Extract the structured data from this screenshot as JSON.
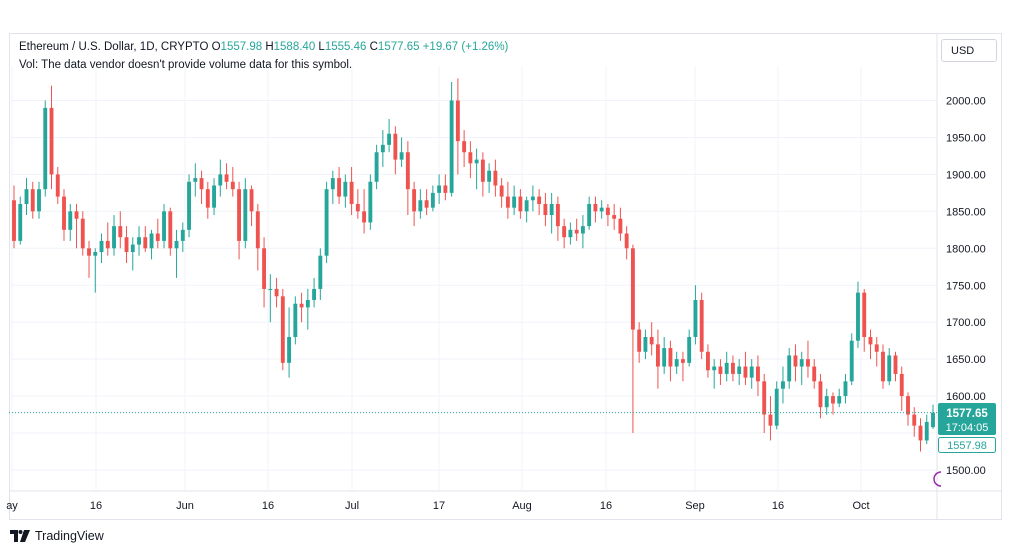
{
  "header": {
    "symbol": "Ethereum / U.S. Dollar, 1D, CRYPTO",
    "open_label": "O",
    "open": "1557.98",
    "high_label": "H",
    "high": "1588.40",
    "low_label": "L",
    "low": "1555.46",
    "close_label": "C",
    "close": "1577.65",
    "change": "+19.67 (+1.26%)",
    "volume_note": "Vol: The data vendor doesn't provide volume data for this symbol."
  },
  "currency_button": "USD",
  "price_badge": {
    "price": "1577.65",
    "countdown": "17:04:05",
    "open_price": "1557.98"
  },
  "branding": {
    "text": "TradingView"
  },
  "colors": {
    "up": "#26a69a",
    "down": "#ef5350",
    "grid": "#f0f3fa",
    "text": "#131722",
    "price_line": "#26a69a"
  },
  "chart_data": {
    "type": "candlestick",
    "y_ticks": [
      "2000.00",
      "1950.00",
      "1900.00",
      "1850.00",
      "1800.00",
      "1750.00",
      "1700.00",
      "1650.00",
      "1600.00",
      "1500.00"
    ],
    "y_tick_values": [
      2000,
      1950,
      1900,
      1850,
      1800,
      1750,
      1700,
      1650,
      1600,
      1500
    ],
    "x_ticks": [
      "ay",
      "16",
      "Jun",
      "16",
      "Jul",
      "17",
      "Aug",
      "16",
      "Sep",
      "16",
      "Oct"
    ],
    "ylim": [
      1474,
      2055
    ],
    "current_price": 1577.65,
    "candles": [
      [
        1865,
        1885,
        1800,
        1810
      ],
      [
        1810,
        1870,
        1805,
        1860
      ],
      [
        1860,
        1895,
        1845,
        1880
      ],
      [
        1880,
        1890,
        1840,
        1850
      ],
      [
        1850,
        1890,
        1840,
        1880
      ],
      [
        1880,
        2000,
        1870,
        1990
      ],
      [
        1990,
        2020,
        1880,
        1900
      ],
      [
        1900,
        1910,
        1860,
        1870
      ],
      [
        1870,
        1880,
        1810,
        1825
      ],
      [
        1825,
        1860,
        1810,
        1850
      ],
      [
        1850,
        1860,
        1800,
        1840
      ],
      [
        1840,
        1850,
        1790,
        1800
      ],
      [
        1800,
        1810,
        1760,
        1790
      ],
      [
        1790,
        1800,
        1740,
        1795
      ],
      [
        1795,
        1820,
        1780,
        1810
      ],
      [
        1810,
        1835,
        1790,
        1800
      ],
      [
        1800,
        1845,
        1790,
        1830
      ],
      [
        1830,
        1850,
        1800,
        1815
      ],
      [
        1815,
        1830,
        1780,
        1795
      ],
      [
        1795,
        1815,
        1770,
        1805
      ],
      [
        1805,
        1830,
        1790,
        1815
      ],
      [
        1815,
        1830,
        1795,
        1800
      ],
      [
        1800,
        1825,
        1785,
        1820
      ],
      [
        1820,
        1840,
        1800,
        1810
      ],
      [
        1810,
        1860,
        1800,
        1850
      ],
      [
        1850,
        1855,
        1790,
        1800
      ],
      [
        1800,
        1825,
        1760,
        1810
      ],
      [
        1810,
        1835,
        1795,
        1825
      ],
      [
        1825,
        1900,
        1815,
        1890
      ],
      [
        1890,
        1915,
        1870,
        1895
      ],
      [
        1895,
        1905,
        1860,
        1880
      ],
      [
        1880,
        1890,
        1840,
        1855
      ],
      [
        1855,
        1895,
        1845,
        1885
      ],
      [
        1885,
        1920,
        1870,
        1900
      ],
      [
        1900,
        1915,
        1880,
        1890
      ],
      [
        1890,
        1910,
        1870,
        1880
      ],
      [
        1880,
        1890,
        1785,
        1810
      ],
      [
        1810,
        1895,
        1800,
        1880
      ],
      [
        1880,
        1885,
        1830,
        1850
      ],
      [
        1850,
        1860,
        1770,
        1800
      ],
      [
        1800,
        1815,
        1720,
        1745
      ],
      [
        1745,
        1765,
        1700,
        1745
      ],
      [
        1745,
        1760,
        1720,
        1735
      ],
      [
        1735,
        1745,
        1635,
        1645
      ],
      [
        1645,
        1720,
        1625,
        1680
      ],
      [
        1680,
        1735,
        1670,
        1725
      ],
      [
        1725,
        1740,
        1700,
        1720
      ],
      [
        1720,
        1745,
        1690,
        1730
      ],
      [
        1730,
        1760,
        1720,
        1745
      ],
      [
        1745,
        1800,
        1730,
        1790
      ],
      [
        1790,
        1890,
        1780,
        1880
      ],
      [
        1880,
        1905,
        1860,
        1895
      ],
      [
        1895,
        1910,
        1860,
        1870
      ],
      [
        1870,
        1900,
        1855,
        1890
      ],
      [
        1890,
        1910,
        1845,
        1860
      ],
      [
        1860,
        1880,
        1840,
        1850
      ],
      [
        1850,
        1880,
        1820,
        1835
      ],
      [
        1835,
        1900,
        1825,
        1890
      ],
      [
        1890,
        1940,
        1880,
        1930
      ],
      [
        1930,
        1960,
        1910,
        1940
      ],
      [
        1940,
        1975,
        1930,
        1955
      ],
      [
        1955,
        1965,
        1900,
        1920
      ],
      [
        1920,
        1950,
        1910,
        1930
      ],
      [
        1930,
        1945,
        1845,
        1880
      ],
      [
        1880,
        1890,
        1830,
        1850
      ],
      [
        1850,
        1880,
        1840,
        1865
      ],
      [
        1865,
        1880,
        1845,
        1855
      ],
      [
        1855,
        1885,
        1850,
        1875
      ],
      [
        1875,
        1900,
        1860,
        1885
      ],
      [
        1885,
        1900,
        1865,
        1875
      ],
      [
        1875,
        2025,
        1870,
        2000
      ],
      [
        2000,
        2030,
        1900,
        1945
      ],
      [
        1945,
        1960,
        1910,
        1930
      ],
      [
        1930,
        1945,
        1895,
        1915
      ],
      [
        1915,
        1935,
        1880,
        1920
      ],
      [
        1920,
        1930,
        1870,
        1890
      ],
      [
        1890,
        1915,
        1875,
        1905
      ],
      [
        1905,
        1920,
        1870,
        1885
      ],
      [
        1885,
        1895,
        1855,
        1870
      ],
      [
        1870,
        1890,
        1840,
        1855
      ],
      [
        1855,
        1885,
        1845,
        1870
      ],
      [
        1870,
        1880,
        1840,
        1850
      ],
      [
        1850,
        1870,
        1835,
        1865
      ],
      [
        1865,
        1885,
        1850,
        1870
      ],
      [
        1870,
        1880,
        1845,
        1860
      ],
      [
        1860,
        1875,
        1830,
        1845
      ],
      [
        1845,
        1875,
        1820,
        1860
      ],
      [
        1860,
        1870,
        1810,
        1830
      ],
      [
        1830,
        1840,
        1800,
        1815
      ],
      [
        1815,
        1835,
        1805,
        1825
      ],
      [
        1825,
        1840,
        1810,
        1820
      ],
      [
        1820,
        1845,
        1800,
        1830
      ],
      [
        1830,
        1870,
        1825,
        1860
      ],
      [
        1860,
        1870,
        1835,
        1850
      ],
      [
        1850,
        1865,
        1840,
        1855
      ],
      [
        1855,
        1860,
        1830,
        1845
      ],
      [
        1845,
        1860,
        1825,
        1840
      ],
      [
        1840,
        1855,
        1810,
        1820
      ],
      [
        1820,
        1830,
        1785,
        1800
      ],
      [
        1800,
        1805,
        1550,
        1690
      ],
      [
        1690,
        1700,
        1645,
        1660
      ],
      [
        1660,
        1690,
        1650,
        1680
      ],
      [
        1680,
        1700,
        1655,
        1670
      ],
      [
        1670,
        1690,
        1610,
        1640
      ],
      [
        1640,
        1680,
        1630,
        1665
      ],
      [
        1665,
        1675,
        1620,
        1640
      ],
      [
        1640,
        1660,
        1630,
        1650
      ],
      [
        1650,
        1660,
        1620,
        1645
      ],
      [
        1645,
        1690,
        1640,
        1680
      ],
      [
        1680,
        1750,
        1670,
        1730
      ],
      [
        1730,
        1740,
        1650,
        1660
      ],
      [
        1660,
        1670,
        1625,
        1635
      ],
      [
        1635,
        1650,
        1610,
        1640
      ],
      [
        1640,
        1650,
        1615,
        1630
      ],
      [
        1630,
        1660,
        1620,
        1645
      ],
      [
        1645,
        1655,
        1620,
        1630
      ],
      [
        1630,
        1650,
        1615,
        1640
      ],
      [
        1640,
        1660,
        1615,
        1625
      ],
      [
        1625,
        1650,
        1610,
        1640
      ],
      [
        1640,
        1655,
        1600,
        1620
      ],
      [
        1620,
        1630,
        1550,
        1575
      ],
      [
        1575,
        1600,
        1540,
        1560
      ],
      [
        1560,
        1620,
        1555,
        1610
      ],
      [
        1610,
        1640,
        1590,
        1620
      ],
      [
        1620,
        1665,
        1610,
        1655
      ],
      [
        1655,
        1670,
        1620,
        1640
      ],
      [
        1640,
        1660,
        1615,
        1650
      ],
      [
        1650,
        1675,
        1625,
        1640
      ],
      [
        1640,
        1650,
        1610,
        1620
      ],
      [
        1620,
        1630,
        1570,
        1585
      ],
      [
        1585,
        1610,
        1575,
        1600
      ],
      [
        1600,
        1605,
        1575,
        1590
      ],
      [
        1590,
        1610,
        1585,
        1600
      ],
      [
        1600,
        1630,
        1590,
        1620
      ],
      [
        1620,
        1685,
        1615,
        1675
      ],
      [
        1675,
        1755,
        1665,
        1740
      ],
      [
        1740,
        1745,
        1660,
        1680
      ],
      [
        1680,
        1690,
        1650,
        1670
      ],
      [
        1670,
        1680,
        1640,
        1660
      ],
      [
        1660,
        1670,
        1610,
        1620
      ],
      [
        1620,
        1665,
        1615,
        1655
      ],
      [
        1655,
        1660,
        1620,
        1630
      ],
      [
        1630,
        1640,
        1580,
        1600
      ],
      [
        1600,
        1605,
        1560,
        1575
      ],
      [
        1575,
        1585,
        1545,
        1560
      ],
      [
        1560,
        1570,
        1525,
        1540
      ],
      [
        1540,
        1575,
        1535,
        1565
      ],
      [
        1557.98,
        1588.4,
        1555.46,
        1577.65
      ]
    ]
  }
}
